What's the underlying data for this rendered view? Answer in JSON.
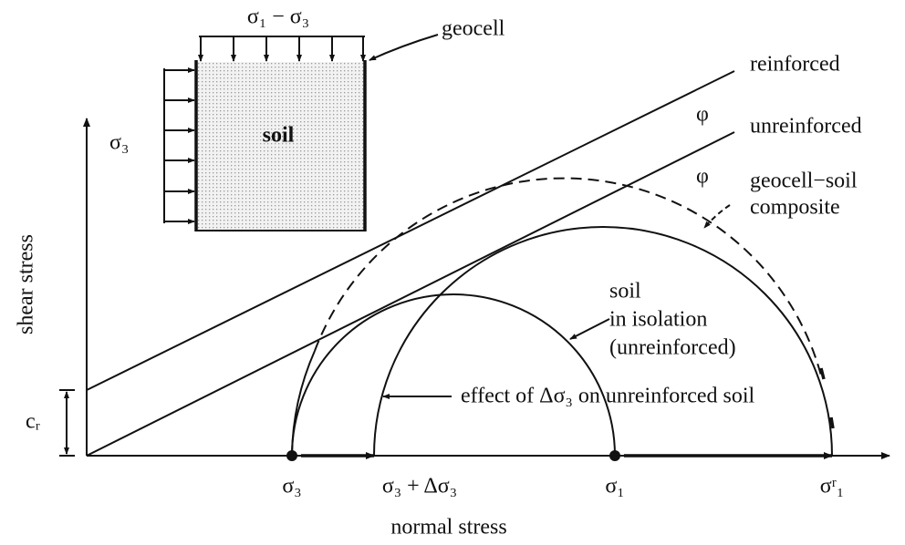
{
  "inset": {
    "load_label": "σ₁ − σ₃",
    "geocell_label": "geocell",
    "soil_label": "soil",
    "confining_label": "σ₃"
  },
  "envelopes": {
    "reinforced": "reinforced",
    "phi_upper": "φ",
    "unreinforced": "unreinforced",
    "phi_lower": "φ"
  },
  "circles": {
    "composite": [
      "geocell−soil",
      "composite"
    ],
    "isolation": [
      "soil",
      "in isolation",
      "(unreinforced)"
    ],
    "effect": "effect of Δσ₃ on unreinforced soil"
  },
  "axes": {
    "y_label": "shear stress",
    "intercept_label": "cᵣ",
    "x_label": "normal stress",
    "x_points": [
      "σ₃",
      "σ₃ + Δσ₃",
      "σ₁",
      "σʳ₁"
    ]
  }
}
